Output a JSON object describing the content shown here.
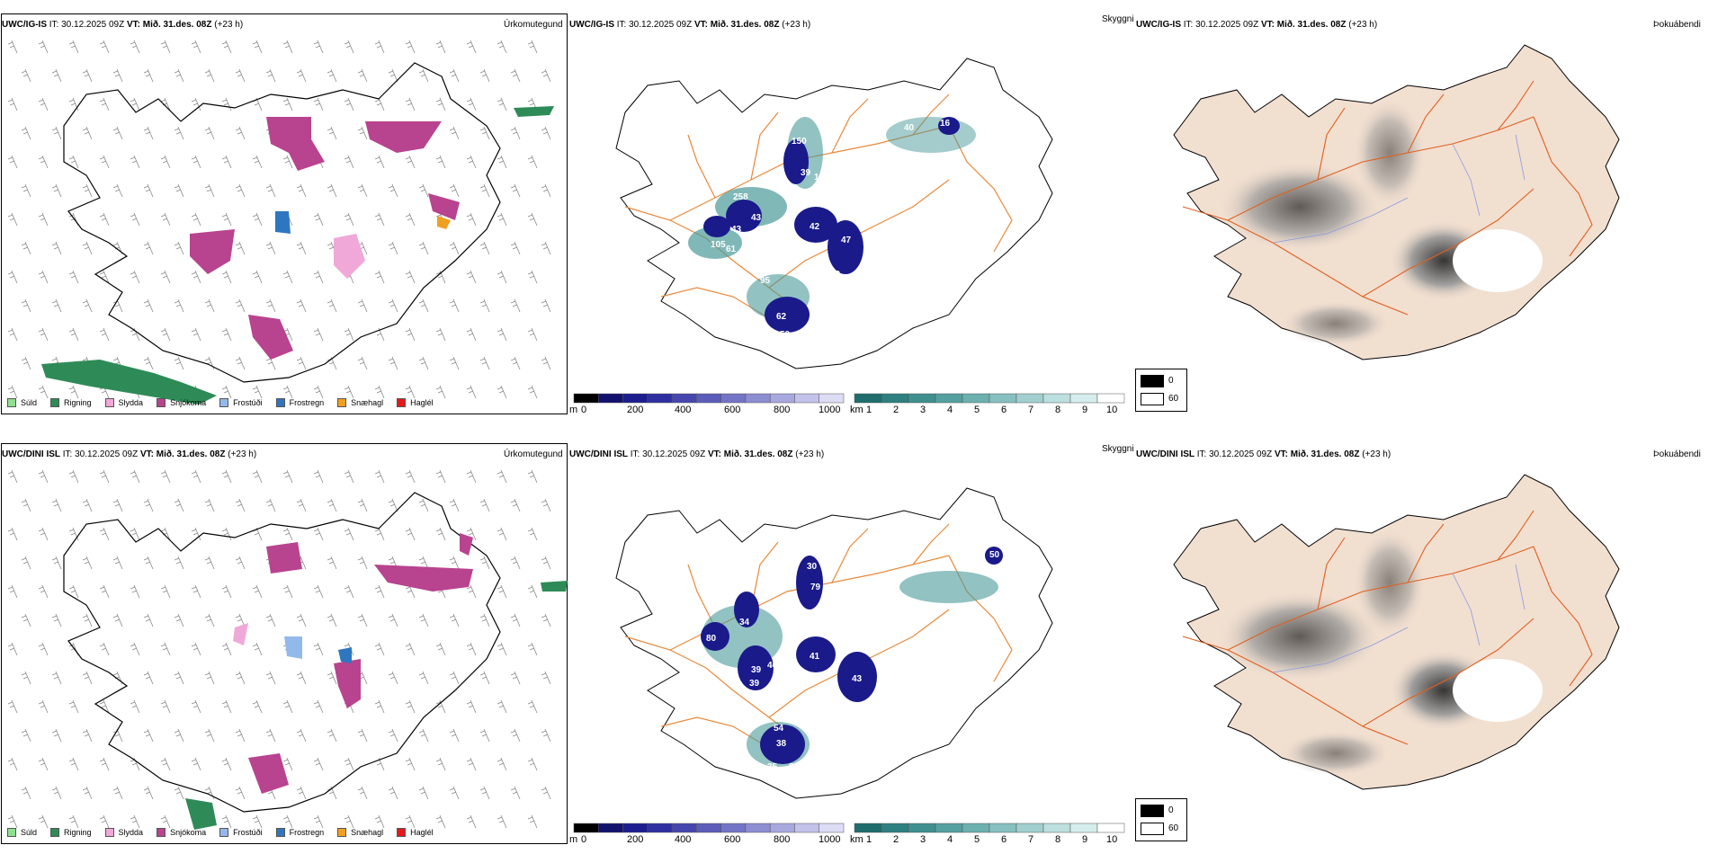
{
  "rows": [
    {
      "model": "UWC/IG-IS",
      "it_label": "IT:",
      "it_value": "30.12.2025 09Z",
      "vt_label": "VT:",
      "vt_value": "Mið. 31.des. 08Z",
      "lead": "(+23 h)",
      "panel_titles": {
        "precip": "Úrkomutegund",
        "visibility": "Skyggni",
        "fog": "Þokuábendi"
      },
      "visibility_labels": [
        "258",
        "43",
        "105",
        "61",
        "43",
        "59",
        "95",
        "150",
        "42",
        "47",
        "80",
        "62",
        "50",
        "34",
        "16",
        "40",
        "147",
        "39"
      ],
      "fog_values": [
        "0",
        "60"
      ]
    },
    {
      "model": "UWC/DINI ISL",
      "it_label": "IT:",
      "it_value": "30.12.2025 09Z",
      "vt_label": "VT:",
      "vt_value": "Mið. 31.des. 08Z",
      "lead": "(+23 h)",
      "panel_titles": {
        "precip": "Úrkomutegund",
        "visibility": "Skyggni",
        "fog": "Þokuábendi"
      },
      "visibility_labels": [
        "80",
        "34",
        "39",
        "46",
        "48",
        "39",
        "41",
        "43",
        "56",
        "79",
        "54",
        "38",
        "35",
        "33",
        "158",
        "76",
        "30",
        "50"
      ],
      "fog_values": [
        "0",
        "60"
      ]
    }
  ],
  "precip_legend": [
    {
      "label": "Súld",
      "color": "#8fe08f"
    },
    {
      "label": "Rigning",
      "color": "#2e8b57"
    },
    {
      "label": "Slydda",
      "color": "#f0a8d8"
    },
    {
      "label": "Snjókoma",
      "color": "#b8438f"
    },
    {
      "label": "Frostúði",
      "color": "#93b9ea"
    },
    {
      "label": "Frostregn",
      "color": "#2f76c0"
    },
    {
      "label": "Snæhagl",
      "color": "#f0a020"
    },
    {
      "label": "Haglél",
      "color": "#e31a1c"
    }
  ],
  "height_bar": {
    "unit": "m",
    "ticks": [
      "0",
      "200",
      "400",
      "600",
      "800",
      "1000"
    ],
    "colors": [
      "#000000",
      "#12126e",
      "#1d1d8f",
      "#2f2fa2",
      "#4646ae",
      "#5c5cba",
      "#7474c6",
      "#8d8dd2",
      "#a8a8de",
      "#c2c2ea",
      "#dcdcf5"
    ]
  },
  "visibility_bar": {
    "unit": "km",
    "ticks": [
      "1",
      "2",
      "3",
      "4",
      "5",
      "6",
      "7",
      "8",
      "9",
      "10"
    ],
    "colors": [
      "#1f6d6d",
      "#2e7f7f",
      "#3f8f8f",
      "#55a0a0",
      "#6db0b0",
      "#87c0c0",
      "#a1cfcf",
      "#bcdfdf",
      "#d6eded",
      "#ffffff"
    ]
  },
  "map_colors": {
    "land_fog": "#f1dfd0",
    "road": "#e06020",
    "road_vis": "#e8893b",
    "river": "#8a9ae0",
    "coast": "#000000",
    "vis_fill": "#4a9a9a",
    "vis_dark": "#1a1a8a"
  }
}
